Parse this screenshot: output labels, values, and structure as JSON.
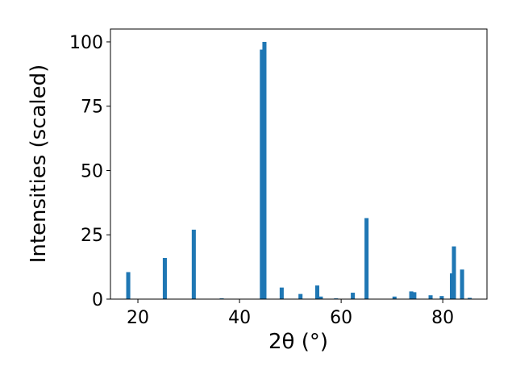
{
  "chart_data": {
    "type": "bar",
    "x_label": "2θ (°)",
    "y_label": "Intensities (scaled)",
    "x": [
      18.1,
      25.3,
      31.0,
      36.5,
      44.4,
      44.9,
      48.3,
      52.0,
      55.3,
      56.0,
      59.0,
      62.3,
      65.0,
      70.5,
      73.8,
      74.4,
      77.6,
      79.8,
      81.8,
      82.2,
      83.8,
      85.3
    ],
    "values": [
      10.5,
      16,
      27,
      0.3,
      97,
      100,
      4.5,
      2,
      5.3,
      1,
      0.3,
      2.5,
      31.5,
      1,
      3,
      2.7,
      1.5,
      1.2,
      10,
      20.5,
      11.5,
      0.5
    ],
    "color": "#1f77b4",
    "xlim": [
      14.6,
      88.7
    ],
    "xticks": [
      20,
      40,
      60,
      80
    ],
    "ylim": [
      0,
      105
    ],
    "yticks": [
      0,
      25,
      50,
      75,
      100
    ]
  }
}
